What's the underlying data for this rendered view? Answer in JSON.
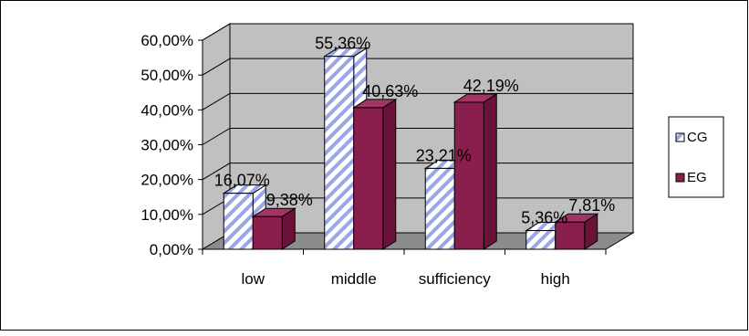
{
  "chart_data": {
    "type": "bar",
    "categories": [
      "low",
      "middle",
      "sufficiency",
      "high"
    ],
    "series": [
      {
        "name": "CG",
        "values": [
          16.07,
          55.36,
          23.21,
          5.36
        ],
        "labels": [
          "16,07%",
          "55,36%",
          "23,21%",
          "5,36%"
        ]
      },
      {
        "name": "EG",
        "values": [
          9.38,
          40.63,
          42.19,
          7.81
        ],
        "labels": [
          "9,38%",
          "40,63%",
          "42,19%",
          "7,81%"
        ]
      }
    ],
    "yticks": [
      "0,00%",
      "10,00%",
      "20,00%",
      "30,00%",
      "40,00%",
      "50,00%",
      "60,00%"
    ],
    "ylim": [
      0,
      60
    ],
    "style_3d": true,
    "grid": true,
    "legend_position": "right",
    "colors": {
      "cg_fill": "#ffffff",
      "cg_stripe": "#9aa6e6",
      "eg_front": "#8a1f4e",
      "eg_side": "#6a1238",
      "eg_top": "#a33566",
      "wall": "#c0c0c0",
      "floor": "#8c8c8c"
    }
  }
}
